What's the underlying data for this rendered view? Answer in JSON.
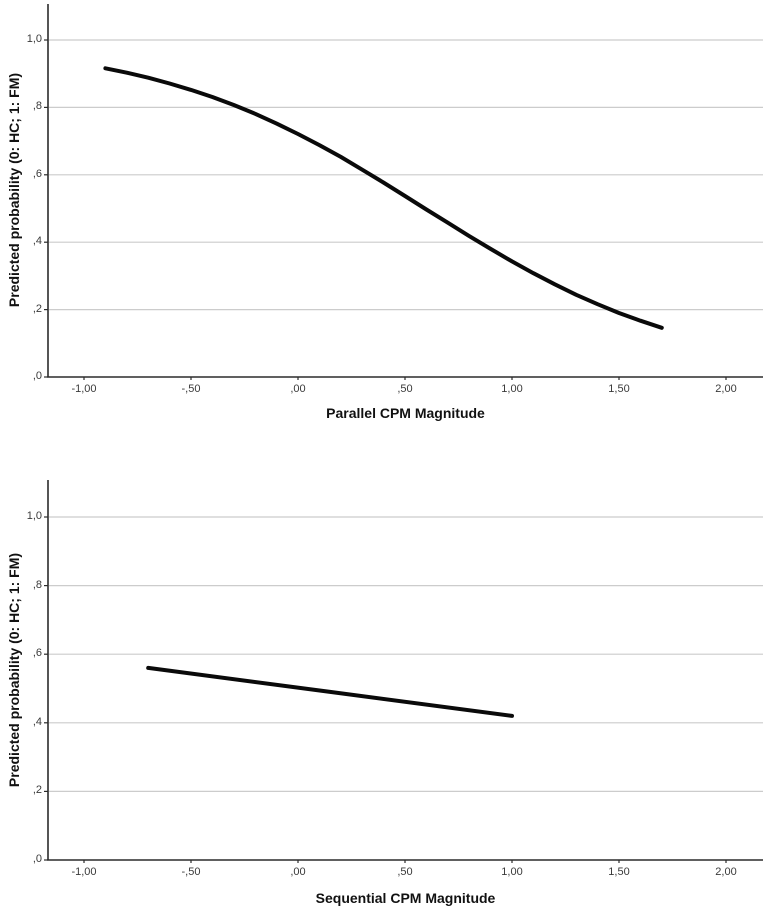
{
  "figure": {
    "background": "#ffffff",
    "grid_color": "#cccccc",
    "axis_color": "#2b2b2b",
    "curve_color": "#0a0a0a",
    "tick_label_color": "#3a3a3a",
    "title_color": "#111111"
  },
  "charts": [
    {
      "id": "parallel",
      "x_axis_title": "Parallel CPM Magnitude",
      "y_axis_title": "Predicted probability (0: HC; 1: FM)",
      "x_tick_labels": [
        "-1,00",
        "-,50",
        ",00",
        ",50",
        "1,00",
        "1,50",
        "2,00"
      ],
      "y_tick_labels": [
        "1,0",
        ",8",
        ",6",
        ",4",
        ",2",
        ",0"
      ]
    },
    {
      "id": "sequential",
      "x_axis_title": "Sequential CPM Magnitude",
      "y_axis_title": "Predicted probability (0: HC; 1: FM)",
      "x_tick_labels": [
        "-1,00",
        "-,50",
        ",00",
        ",50",
        "1,00",
        "1,50",
        "2,00"
      ],
      "y_tick_labels": [
        "1,0",
        ",8",
        ",6",
        ",4",
        ",2",
        ",0"
      ]
    }
  ],
  "chart_data": [
    {
      "type": "line",
      "title": "",
      "xlabel": "Parallel CPM Magnitude",
      "ylabel": "Predicted probability (0: HC; 1: FM)",
      "xlim": [
        -1.17,
        2.17
      ],
      "ylim": [
        0,
        1.11
      ],
      "x_ticks": [
        -1.0,
        -0.5,
        0.0,
        0.5,
        1.0,
        1.5,
        2.0
      ],
      "y_ticks": [
        1.0,
        0.8,
        0.6,
        0.4,
        0.2,
        0.0
      ],
      "grid": "horizontal",
      "legend": "none",
      "series": [
        {
          "name": "predicted-probability-curve",
          "x": [
            -0.9,
            -0.8,
            -0.7,
            -0.6,
            -0.5,
            -0.4,
            -0.3,
            -0.2,
            -0.1,
            0.0,
            0.1,
            0.2,
            0.3,
            0.4,
            0.5,
            0.6,
            0.7,
            0.8,
            0.9,
            1.0,
            1.1,
            1.2,
            1.3,
            1.4,
            1.5,
            1.6,
            1.7
          ],
          "y": [
            0.916,
            0.903,
            0.888,
            0.871,
            0.852,
            0.831,
            0.807,
            0.781,
            0.752,
            0.721,
            0.688,
            0.653,
            0.615,
            0.577,
            0.537,
            0.497,
            0.458,
            0.418,
            0.38,
            0.343,
            0.308,
            0.275,
            0.244,
            0.216,
            0.19,
            0.167,
            0.146
          ]
        }
      ]
    },
    {
      "type": "line",
      "title": "",
      "xlabel": "Sequential CPM Magnitude",
      "ylabel": "Predicted probability (0: HC; 1: FM)",
      "xlim": [
        -1.17,
        2.17
      ],
      "ylim": [
        0,
        1.11
      ],
      "x_ticks": [
        -1.0,
        -0.5,
        0.0,
        0.5,
        1.0,
        1.5,
        2.0
      ],
      "y_ticks": [
        1.0,
        0.8,
        0.6,
        0.4,
        0.2,
        0.0
      ],
      "grid": "horizontal",
      "legend": "none",
      "series": [
        {
          "name": "predicted-probability-line",
          "x": [
            -0.7,
            0.15,
            1.0
          ],
          "y": [
            0.56,
            0.49,
            0.42
          ]
        }
      ]
    }
  ]
}
